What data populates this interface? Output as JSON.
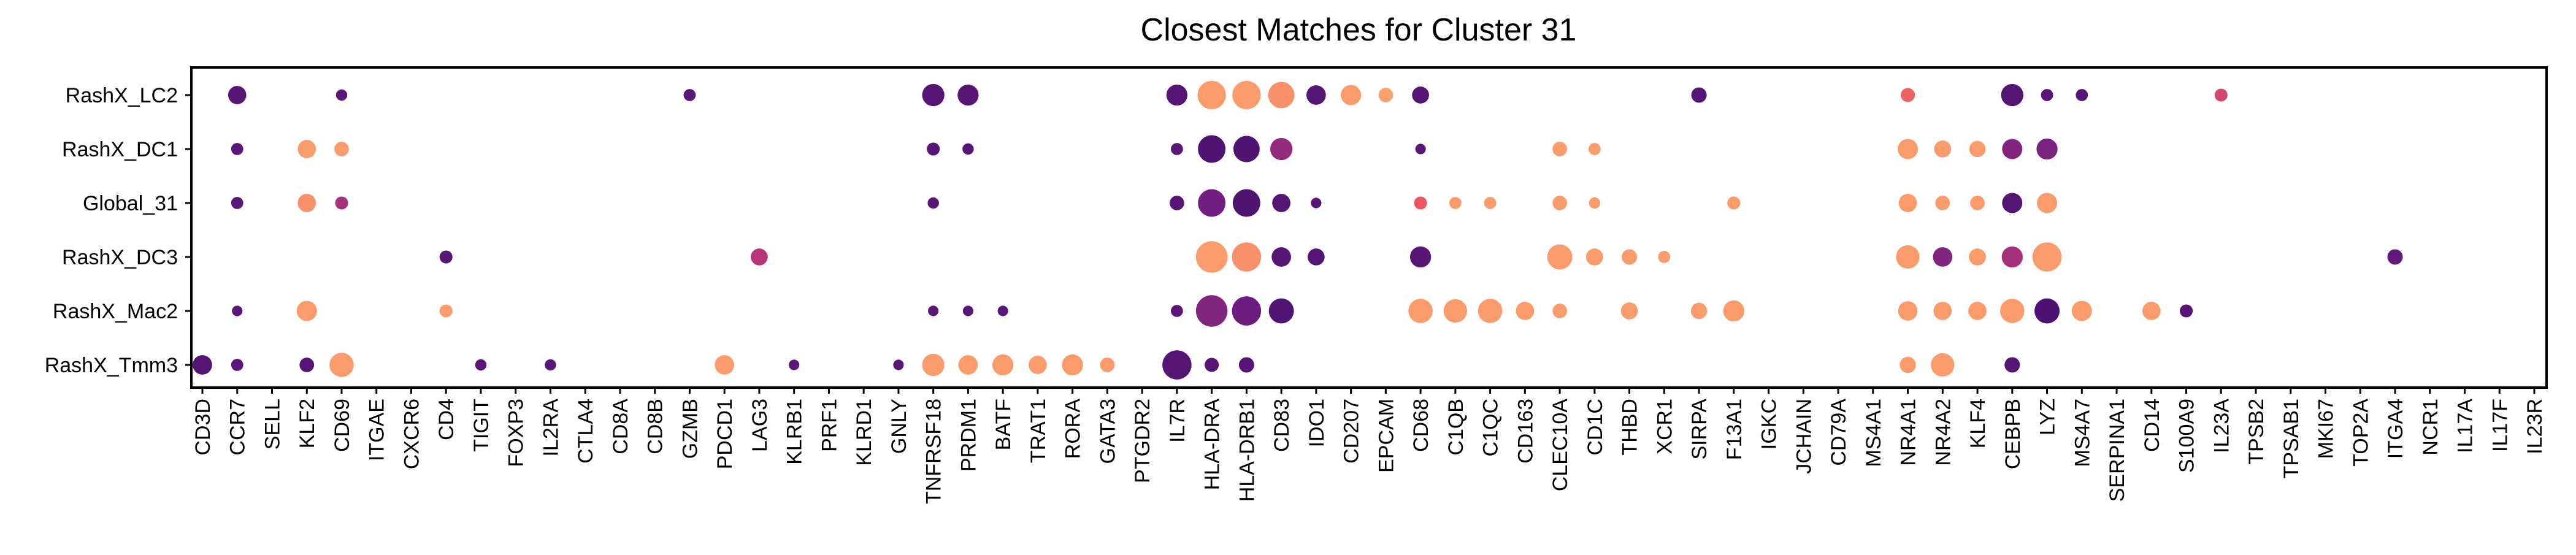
{
  "chart_data": {
    "type": "scatter",
    "title": "Closest Matches for Cluster 31",
    "xlabel": "",
    "ylabel": "",
    "grid": false,
    "legend": "none",
    "genes": [
      "CD3D",
      "CCR7",
      "SELL",
      "KLF2",
      "CD69",
      "ITGAE",
      "CXCR6",
      "CD4",
      "TIGIT",
      "FOXP3",
      "IL2RA",
      "CTLA4",
      "CD8A",
      "CD8B",
      "GZMB",
      "PDCD1",
      "LAG3",
      "KLRB1",
      "PRF1",
      "KLRD1",
      "GNLY",
      "TNFRSF18",
      "PRDM1",
      "BATF",
      "TRAT1",
      "RORA",
      "GATA3",
      "PTGDR2",
      "IL7R",
      "HLA-DRA",
      "HLA-DRB1",
      "CD83",
      "IDO1",
      "CD207",
      "EPCAM",
      "CD68",
      "C1QB",
      "C1QC",
      "CD163",
      "CLEC10A",
      "CD1C",
      "THBD",
      "XCR1",
      "SIRPA",
      "F13A1",
      "IGKC",
      "JCHAIN",
      "CD79A",
      "MS4A1",
      "NR4A1",
      "NR4A2",
      "KLF4",
      "CEBPB",
      "LYZ",
      "MS4A7",
      "SERPINA1",
      "CD14",
      "S100A9",
      "IL23A",
      "TPSB2",
      "TPSAB1",
      "MKI67",
      "TOP2A",
      "ITGA4",
      "NCR1",
      "IL17A",
      "IL17F",
      "IL23R"
    ],
    "groups": [
      "RashX_LC2",
      "RashX_DC1",
      "Global_31",
      "RashX_DC3",
      "RashX_Mac2",
      "RashX_Tmm3"
    ],
    "points": [
      {
        "group": "RashX_LC2",
        "gene": "CCR7",
        "size": 0.45,
        "color": 0.1
      },
      {
        "group": "RashX_LC2",
        "gene": "CD69",
        "size": 0.28,
        "color": 0.12
      },
      {
        "group": "RashX_LC2",
        "gene": "GZMB",
        "size": 0.3,
        "color": 0.12
      },
      {
        "group": "RashX_LC2",
        "gene": "TNFRSF18",
        "size": 0.55,
        "color": 0.08
      },
      {
        "group": "RashX_LC2",
        "gene": "PRDM1",
        "size": 0.52,
        "color": 0.1
      },
      {
        "group": "RashX_LC2",
        "gene": "IL7R",
        "size": 0.52,
        "color": 0.1
      },
      {
        "group": "RashX_LC2",
        "gene": "HLA-DRA",
        "size": 0.7,
        "color": 0.85
      },
      {
        "group": "RashX_LC2",
        "gene": "HLA-DRB1",
        "size": 0.7,
        "color": 0.85
      },
      {
        "group": "RashX_LC2",
        "gene": "CD83",
        "size": 0.65,
        "color": 0.82
      },
      {
        "group": "RashX_LC2",
        "gene": "IDO1",
        "size": 0.48,
        "color": 0.08
      },
      {
        "group": "RashX_LC2",
        "gene": "CD207",
        "size": 0.5,
        "color": 0.85
      },
      {
        "group": "RashX_LC2",
        "gene": "EPCAM",
        "size": 0.36,
        "color": 0.87
      },
      {
        "group": "RashX_LC2",
        "gene": "CD68",
        "size": 0.42,
        "color": 0.1
      },
      {
        "group": "RashX_LC2",
        "gene": "SIRPA",
        "size": 0.38,
        "color": 0.1
      },
      {
        "group": "RashX_LC2",
        "gene": "NR4A1",
        "size": 0.35,
        "color": 0.68
      },
      {
        "group": "RashX_LC2",
        "gene": "CEBPB",
        "size": 0.55,
        "color": 0.08
      },
      {
        "group": "RashX_LC2",
        "gene": "LYZ",
        "size": 0.3,
        "color": 0.12
      },
      {
        "group": "RashX_LC2",
        "gene": "MS4A7",
        "size": 0.3,
        "color": 0.1
      },
      {
        "group": "RashX_LC2",
        "gene": "IL23A",
        "size": 0.32,
        "color": 0.55
      },
      {
        "group": "RashX_DC1",
        "gene": "CCR7",
        "size": 0.3,
        "color": 0.12
      },
      {
        "group": "RashX_DC1",
        "gene": "KLF2",
        "size": 0.45,
        "color": 0.85
      },
      {
        "group": "RashX_DC1",
        "gene": "CD69",
        "size": 0.36,
        "color": 0.85
      },
      {
        "group": "RashX_DC1",
        "gene": "TNFRSF18",
        "size": 0.32,
        "color": 0.1
      },
      {
        "group": "RashX_DC1",
        "gene": "PRDM1",
        "size": 0.28,
        "color": 0.1
      },
      {
        "group": "RashX_DC1",
        "gene": "IL7R",
        "size": 0.3,
        "color": 0.12
      },
      {
        "group": "RashX_DC1",
        "gene": "HLA-DRA",
        "size": 0.68,
        "color": 0.05
      },
      {
        "group": "RashX_DC1",
        "gene": "HLA-DRB1",
        "size": 0.65,
        "color": 0.05
      },
      {
        "group": "RashX_DC1",
        "gene": "CD83",
        "size": 0.55,
        "color": 0.35
      },
      {
        "group": "RashX_DC1",
        "gene": "CD68",
        "size": 0.26,
        "color": 0.12
      },
      {
        "group": "RashX_DC1",
        "gene": "CLEC10A",
        "size": 0.36,
        "color": 0.85
      },
      {
        "group": "RashX_DC1",
        "gene": "CD1C",
        "size": 0.3,
        "color": 0.85
      },
      {
        "group": "RashX_DC1",
        "gene": "NR4A1",
        "size": 0.5,
        "color": 0.85
      },
      {
        "group": "RashX_DC1",
        "gene": "NR4A2",
        "size": 0.42,
        "color": 0.85
      },
      {
        "group": "RashX_DC1",
        "gene": "KLF4",
        "size": 0.4,
        "color": 0.85
      },
      {
        "group": "RashX_DC1",
        "gene": "CEBPB",
        "size": 0.5,
        "color": 0.3
      },
      {
        "group": "RashX_DC1",
        "gene": "LYZ",
        "size": 0.52,
        "color": 0.28
      },
      {
        "group": "Global_31",
        "gene": "CCR7",
        "size": 0.3,
        "color": 0.12
      },
      {
        "group": "Global_31",
        "gene": "KLF2",
        "size": 0.45,
        "color": 0.82
      },
      {
        "group": "Global_31",
        "gene": "CD69",
        "size": 0.32,
        "color": 0.4
      },
      {
        "group": "Global_31",
        "gene": "TNFRSF18",
        "size": 0.28,
        "color": 0.1
      },
      {
        "group": "Global_31",
        "gene": "IL7R",
        "size": 0.36,
        "color": 0.1
      },
      {
        "group": "Global_31",
        "gene": "HLA-DRA",
        "size": 0.68,
        "color": 0.25
      },
      {
        "group": "Global_31",
        "gene": "HLA-DRB1",
        "size": 0.68,
        "color": 0.05
      },
      {
        "group": "Global_31",
        "gene": "CD83",
        "size": 0.45,
        "color": 0.08
      },
      {
        "group": "Global_31",
        "gene": "IDO1",
        "size": 0.26,
        "color": 0.1
      },
      {
        "group": "Global_31",
        "gene": "CD68",
        "size": 0.32,
        "color": 0.65
      },
      {
        "group": "Global_31",
        "gene": "C1QB",
        "size": 0.3,
        "color": 0.85
      },
      {
        "group": "Global_31",
        "gene": "C1QC",
        "size": 0.3,
        "color": 0.85
      },
      {
        "group": "Global_31",
        "gene": "CLEC10A",
        "size": 0.36,
        "color": 0.85
      },
      {
        "group": "Global_31",
        "gene": "CD1C",
        "size": 0.28,
        "color": 0.85
      },
      {
        "group": "Global_31",
        "gene": "F13A1",
        "size": 0.32,
        "color": 0.85
      },
      {
        "group": "Global_31",
        "gene": "NR4A1",
        "size": 0.45,
        "color": 0.85
      },
      {
        "group": "Global_31",
        "gene": "NR4A2",
        "size": 0.36,
        "color": 0.85
      },
      {
        "group": "Global_31",
        "gene": "KLF4",
        "size": 0.36,
        "color": 0.85
      },
      {
        "group": "Global_31",
        "gene": "CEBPB",
        "size": 0.5,
        "color": 0.08
      },
      {
        "group": "Global_31",
        "gene": "LYZ",
        "size": 0.5,
        "color": 0.85
      },
      {
        "group": "RashX_DC3",
        "gene": "CD4",
        "size": 0.32,
        "color": 0.1
      },
      {
        "group": "RashX_DC3",
        "gene": "LAG3",
        "size": 0.42,
        "color": 0.45
      },
      {
        "group": "RashX_DC3",
        "gene": "HLA-DRA",
        "size": 0.78,
        "color": 0.85
      },
      {
        "group": "RashX_DC3",
        "gene": "HLA-DRB1",
        "size": 0.72,
        "color": 0.82
      },
      {
        "group": "RashX_DC3",
        "gene": "CD83",
        "size": 0.48,
        "color": 0.1
      },
      {
        "group": "RashX_DC3",
        "gene": "IDO1",
        "size": 0.42,
        "color": 0.08
      },
      {
        "group": "RashX_DC3",
        "gene": "CD68",
        "size": 0.52,
        "color": 0.1
      },
      {
        "group": "RashX_DC3",
        "gene": "CLEC10A",
        "size": 0.62,
        "color": 0.85
      },
      {
        "group": "RashX_DC3",
        "gene": "CD1C",
        "size": 0.42,
        "color": 0.85
      },
      {
        "group": "RashX_DC3",
        "gene": "THBD",
        "size": 0.38,
        "color": 0.85
      },
      {
        "group": "RashX_DC3",
        "gene": "XCR1",
        "size": 0.3,
        "color": 0.85
      },
      {
        "group": "RashX_DC3",
        "gene": "NR4A1",
        "size": 0.58,
        "color": 0.85
      },
      {
        "group": "RashX_DC3",
        "gene": "NR4A2",
        "size": 0.48,
        "color": 0.3
      },
      {
        "group": "RashX_DC3",
        "gene": "KLF4",
        "size": 0.42,
        "color": 0.85
      },
      {
        "group": "RashX_DC3",
        "gene": "CEBPB",
        "size": 0.52,
        "color": 0.4
      },
      {
        "group": "RashX_DC3",
        "gene": "LYZ",
        "size": 0.72,
        "color": 0.85
      },
      {
        "group": "RashX_DC3",
        "gene": "ITGA4",
        "size": 0.38,
        "color": 0.15
      },
      {
        "group": "RashX_Mac2",
        "gene": "CCR7",
        "size": 0.26,
        "color": 0.12
      },
      {
        "group": "RashX_Mac2",
        "gene": "KLF2",
        "size": 0.5,
        "color": 0.85
      },
      {
        "group": "RashX_Mac2",
        "gene": "CD4",
        "size": 0.32,
        "color": 0.85
      },
      {
        "group": "RashX_Mac2",
        "gene": "TNFRSF18",
        "size": 0.26,
        "color": 0.12
      },
      {
        "group": "RashX_Mac2",
        "gene": "PRDM1",
        "size": 0.26,
        "color": 0.12
      },
      {
        "group": "RashX_Mac2",
        "gene": "BATF",
        "size": 0.26,
        "color": 0.12
      },
      {
        "group": "RashX_Mac2",
        "gene": "IL7R",
        "size": 0.3,
        "color": 0.12
      },
      {
        "group": "RashX_Mac2",
        "gene": "HLA-DRA",
        "size": 0.78,
        "color": 0.3
      },
      {
        "group": "RashX_Mac2",
        "gene": "HLA-DRB1",
        "size": 0.72,
        "color": 0.22
      },
      {
        "group": "RashX_Mac2",
        "gene": "CD83",
        "size": 0.62,
        "color": 0.06
      },
      {
        "group": "RashX_Mac2",
        "gene": "CD68",
        "size": 0.6,
        "color": 0.85
      },
      {
        "group": "RashX_Mac2",
        "gene": "C1QB",
        "size": 0.58,
        "color": 0.85
      },
      {
        "group": "RashX_Mac2",
        "gene": "C1QC",
        "size": 0.6,
        "color": 0.85
      },
      {
        "group": "RashX_Mac2",
        "gene": "CD163",
        "size": 0.45,
        "color": 0.85
      },
      {
        "group": "RashX_Mac2",
        "gene": "CLEC10A",
        "size": 0.36,
        "color": 0.85
      },
      {
        "group": "RashX_Mac2",
        "gene": "THBD",
        "size": 0.42,
        "color": 0.85
      },
      {
        "group": "RashX_Mac2",
        "gene": "SIRPA",
        "size": 0.4,
        "color": 0.85
      },
      {
        "group": "RashX_Mac2",
        "gene": "F13A1",
        "size": 0.52,
        "color": 0.85
      },
      {
        "group": "RashX_Mac2",
        "gene": "NR4A1",
        "size": 0.48,
        "color": 0.85
      },
      {
        "group": "RashX_Mac2",
        "gene": "NR4A2",
        "size": 0.45,
        "color": 0.85
      },
      {
        "group": "RashX_Mac2",
        "gene": "KLF4",
        "size": 0.45,
        "color": 0.85
      },
      {
        "group": "RashX_Mac2",
        "gene": "CEBPB",
        "size": 0.6,
        "color": 0.85
      },
      {
        "group": "RashX_Mac2",
        "gene": "LYZ",
        "size": 0.62,
        "color": 0.04
      },
      {
        "group": "RashX_Mac2",
        "gene": "MS4A7",
        "size": 0.5,
        "color": 0.85
      },
      {
        "group": "RashX_Mac2",
        "gene": "CD14",
        "size": 0.45,
        "color": 0.85
      },
      {
        "group": "RashX_Mac2",
        "gene": "S100A9",
        "size": 0.32,
        "color": 0.1
      },
      {
        "group": "RashX_Tmm3",
        "gene": "CD3D",
        "size": 0.48,
        "color": 0.08
      },
      {
        "group": "RashX_Tmm3",
        "gene": "CCR7",
        "size": 0.3,
        "color": 0.12
      },
      {
        "group": "RashX_Tmm3",
        "gene": "KLF2",
        "size": 0.36,
        "color": 0.1
      },
      {
        "group": "RashX_Tmm3",
        "gene": "CD69",
        "size": 0.6,
        "color": 0.85
      },
      {
        "group": "RashX_Tmm3",
        "gene": "TIGIT",
        "size": 0.28,
        "color": 0.12
      },
      {
        "group": "RashX_Tmm3",
        "gene": "IL2RA",
        "size": 0.28,
        "color": 0.12
      },
      {
        "group": "RashX_Tmm3",
        "gene": "PDCD1",
        "size": 0.48,
        "color": 0.85
      },
      {
        "group": "RashX_Tmm3",
        "gene": "KLRB1",
        "size": 0.26,
        "color": 0.12
      },
      {
        "group": "RashX_Tmm3",
        "gene": "GNLY",
        "size": 0.26,
        "color": 0.12
      },
      {
        "group": "RashX_Tmm3",
        "gene": "TNFRSF18",
        "size": 0.55,
        "color": 0.85
      },
      {
        "group": "RashX_Tmm3",
        "gene": "PRDM1",
        "size": 0.48,
        "color": 0.85
      },
      {
        "group": "RashX_Tmm3",
        "gene": "BATF",
        "size": 0.52,
        "color": 0.85
      },
      {
        "group": "RashX_Tmm3",
        "gene": "TRAT1",
        "size": 0.45,
        "color": 0.85
      },
      {
        "group": "RashX_Tmm3",
        "gene": "RORA",
        "size": 0.52,
        "color": 0.85
      },
      {
        "group": "RashX_Tmm3",
        "gene": "GATA3",
        "size": 0.36,
        "color": 0.85
      },
      {
        "group": "RashX_Tmm3",
        "gene": "IL7R",
        "size": 0.72,
        "color": 0.08
      },
      {
        "group": "RashX_Tmm3",
        "gene": "HLA-DRA",
        "size": 0.35,
        "color": 0.1
      },
      {
        "group": "RashX_Tmm3",
        "gene": "HLA-DRB1",
        "size": 0.38,
        "color": 0.1
      },
      {
        "group": "RashX_Tmm3",
        "gene": "NR4A1",
        "size": 0.4,
        "color": 0.85
      },
      {
        "group": "RashX_Tmm3",
        "gene": "NR4A2",
        "size": 0.58,
        "color": 0.85
      },
      {
        "group": "RashX_Tmm3",
        "gene": "CEBPB",
        "size": 0.38,
        "color": 0.08
      }
    ]
  }
}
